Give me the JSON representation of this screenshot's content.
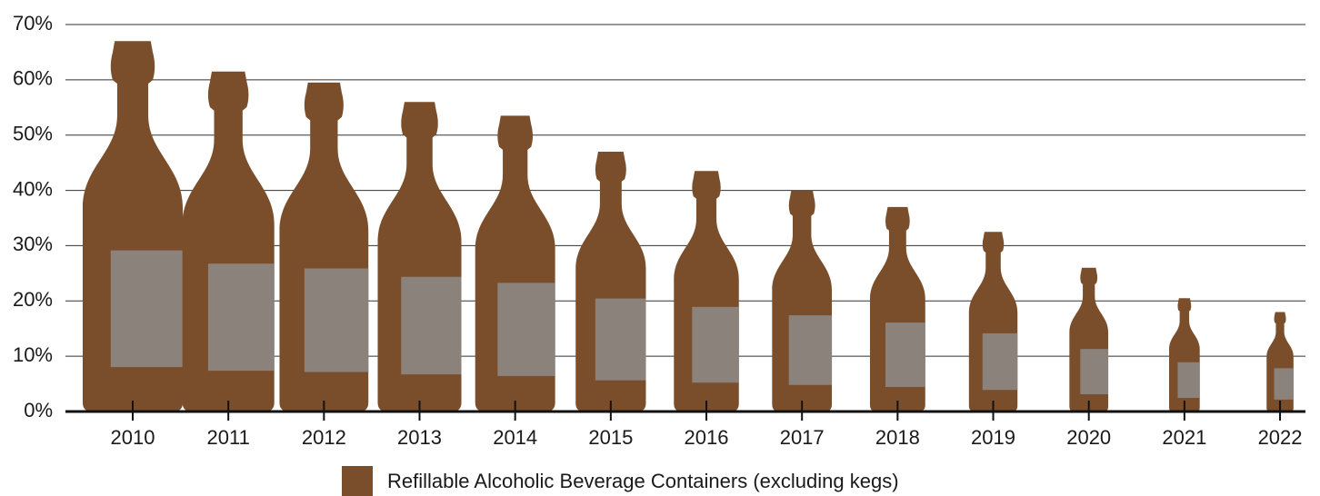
{
  "chart_data": {
    "type": "bar",
    "categories": [
      "2010",
      "2011",
      "2012",
      "2013",
      "2014",
      "2015",
      "2016",
      "2017",
      "2018",
      "2019",
      "2020",
      "2021",
      "2022"
    ],
    "series": [
      {
        "name": "Refillable Alcoholic Beverage Containers (excluding kegs)",
        "color": "#7a4e2b",
        "values": [
          67,
          61.5,
          59.5,
          56,
          53.5,
          47,
          43.5,
          40,
          37,
          32.5,
          26,
          20.5,
          18
        ]
      }
    ],
    "label_color": "#8b827b",
    "ylim": [
      0,
      70
    ],
    "yticks": [
      {
        "value": 0,
        "label": "0%"
      },
      {
        "value": 10,
        "label": "10%"
      },
      {
        "value": 20,
        "label": "20%"
      },
      {
        "value": 30,
        "label": "30%"
      },
      {
        "value": 40,
        "label": "40%"
      },
      {
        "value": 50,
        "label": "50%"
      },
      {
        "value": 60,
        "label": "60%"
      },
      {
        "value": 70,
        "label": "70%"
      }
    ],
    "grid": true,
    "legend": "bottom"
  }
}
